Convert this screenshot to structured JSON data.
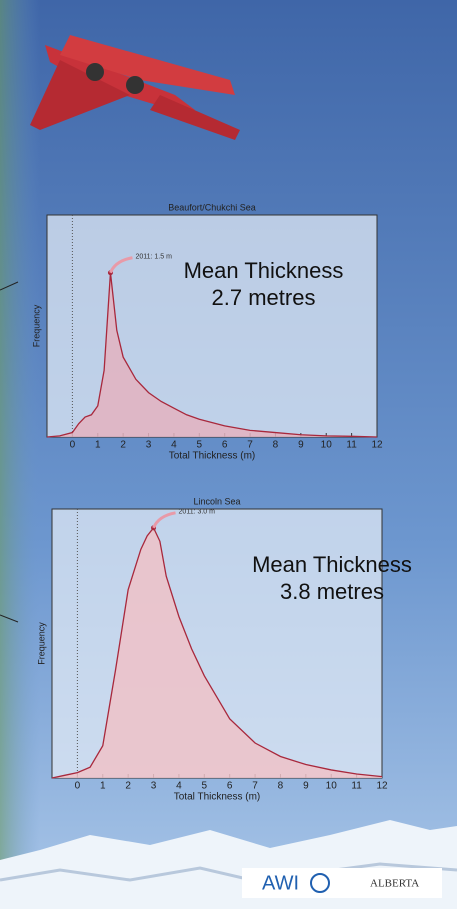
{
  "chart_data": [
    {
      "type": "area",
      "title": "Beaufort/Chukchi Sea",
      "xlabel": "Total Thickness (m)",
      "ylabel": "Frequency",
      "x": [
        -1,
        -0.5,
        0,
        0.25,
        0.5,
        0.75,
        1,
        1.25,
        1.5,
        1.75,
        2,
        2.5,
        3,
        3.5,
        4,
        4.5,
        5,
        6,
        7,
        8,
        9,
        10,
        11,
        12
      ],
      "values": [
        0,
        0.005,
        0.02,
        0.06,
        0.09,
        0.1,
        0.14,
        0.3,
        0.74,
        0.48,
        0.36,
        0.26,
        0.2,
        0.16,
        0.13,
        0.1,
        0.08,
        0.05,
        0.03,
        0.02,
        0.01,
        0.005,
        0.003,
        0
      ],
      "xlim": [
        -1,
        12
      ],
      "ylim": [
        0,
        1
      ],
      "xticks": [
        0,
        1,
        2,
        3,
        4,
        5,
        6,
        7,
        8,
        9,
        10,
        11,
        12
      ],
      "color": "#a8283c",
      "fill": "#e3b3bf",
      "highlight_index": 8,
      "highlight_label": "2011: 1.5 m",
      "note_lines": [
        "Mean Thickness",
        "2.7 metres"
      ]
    },
    {
      "type": "area",
      "title": "Lincoln Sea",
      "xlabel": "Total Thickness (m)",
      "ylabel": "Frequency",
      "x": [
        -1,
        -0.5,
        0,
        0.5,
        1,
        1.5,
        2,
        2.5,
        2.75,
        3,
        3.25,
        3.5,
        4,
        4.5,
        5,
        5.5,
        6,
        7,
        8,
        9,
        10,
        11,
        12
      ],
      "values": [
        0,
        0.01,
        0.02,
        0.04,
        0.12,
        0.4,
        0.7,
        0.85,
        0.9,
        0.93,
        0.88,
        0.75,
        0.6,
        0.48,
        0.38,
        0.3,
        0.22,
        0.13,
        0.08,
        0.05,
        0.03,
        0.015,
        0.005
      ],
      "xlim": [
        -1,
        12
      ],
      "ylim": [
        0,
        1
      ],
      "xticks": [
        0,
        1,
        2,
        3,
        4,
        5,
        6,
        7,
        8,
        9,
        10,
        11,
        12
      ],
      "color": "#a8283c",
      "fill": "#efc2c8",
      "highlight_index": 9,
      "highlight_label": "2011: 3.0 m",
      "note_lines": [
        "Mean Thickness",
        "3.8 metres"
      ]
    }
  ],
  "logos": [
    "AWI",
    "ALBERTA"
  ]
}
